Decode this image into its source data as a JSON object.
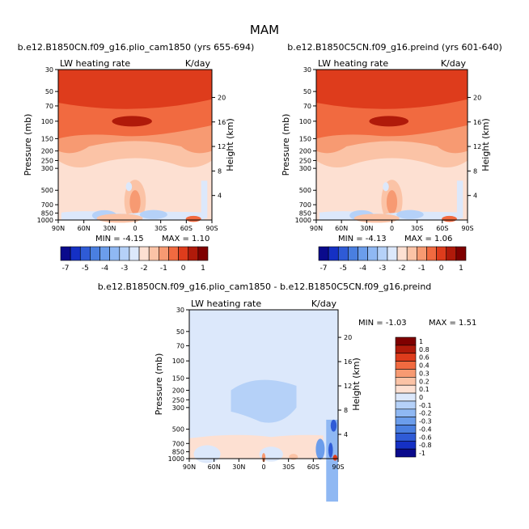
{
  "figure": {
    "title": "MAM",
    "lat_ticks": [
      "90N",
      "60N",
      "30N",
      "0",
      "30S",
      "60S",
      "90S"
    ],
    "pressure_ticks": [
      {
        "label": "30",
        "p": 30
      },
      {
        "label": "50",
        "p": 50
      },
      {
        "label": "70",
        "p": 70
      },
      {
        "label": "100",
        "p": 100
      },
      {
        "label": "150",
        "p": 150
      },
      {
        "label": "200",
        "p": 200
      },
      {
        "label": "250",
        "p": 250
      },
      {
        "label": "300",
        "p": 300
      },
      {
        "label": "500",
        "p": 500
      },
      {
        "label": "700",
        "p": 700
      },
      {
        "label": "850",
        "p": 850
      },
      {
        "label": "1000",
        "p": 1000
      }
    ],
    "height_ticks": [
      {
        "label": "4",
        "km": 4
      },
      {
        "label": "8",
        "km": 8
      },
      {
        "label": "12",
        "km": 12
      },
      {
        "label": "16",
        "km": 16
      },
      {
        "label": "20",
        "km": 20
      }
    ],
    "colors": {
      "accent_dark_red": "#7f0000",
      "neutral_light": "#fde0d2",
      "blue_dark": "#0a0a8c"
    }
  },
  "chart_data": [
    {
      "type": "heatmap",
      "title": "b.e12.B1850CN.f09_g16.plio_cam1850 (yrs 655-694)",
      "left_label": "LW heating rate",
      "right_label": "K/day",
      "xlabel": "",
      "ylabel": "Pressure (mb)",
      "y2label": "Height (km)",
      "ylim": [
        1000,
        30
      ],
      "y_scale": "log",
      "min_label": "MIN =   -4.15",
      "max_label": "MAX =    1.10",
      "min": -4.15,
      "max": 1.1,
      "colorbar": {
        "levels": [
          -7,
          -6,
          -5,
          -4.5,
          -4,
          -3.5,
          -3,
          -2.5,
          -2,
          -1.5,
          -1,
          -0.5,
          0,
          0.5,
          1
        ],
        "tick_labels": [
          "-7",
          "-5",
          "-4",
          "-3",
          "-2",
          "-1",
          "0",
          "1"
        ],
        "colors": [
          "#0a0a8c",
          "#1530c4",
          "#2f5bd6",
          "#4a7fe0",
          "#6b9deb",
          "#8fb8f3",
          "#b5d1f8",
          "#dce8fb",
          "#fde0d2",
          "#fbc3a6",
          "#f79a72",
          "#f16a40",
          "#de3c1c",
          "#b01a0a",
          "#7f0000"
        ]
      }
    },
    {
      "type": "heatmap",
      "title": "b.e12.B1850C5CN.f09_g16.preind (yrs 601-640)",
      "left_label": "LW heating rate",
      "right_label": "K/day",
      "xlabel": "",
      "ylabel": "Pressure (mb)",
      "y2label": "Height (km)",
      "ylim": [
        1000,
        30
      ],
      "y_scale": "log",
      "min_label": "MIN =   -4.13",
      "max_label": "MAX =    1.06",
      "min": -4.13,
      "max": 1.06,
      "colorbar": {
        "levels": [
          -7,
          -6,
          -5,
          -4.5,
          -4,
          -3.5,
          -3,
          -2.5,
          -2,
          -1.5,
          -1,
          -0.5,
          0,
          0.5,
          1
        ],
        "tick_labels": [
          "-7",
          "-5",
          "-4",
          "-3",
          "-2",
          "-1",
          "0",
          "1"
        ],
        "colors": [
          "#0a0a8c",
          "#1530c4",
          "#2f5bd6",
          "#4a7fe0",
          "#6b9deb",
          "#8fb8f3",
          "#b5d1f8",
          "#dce8fb",
          "#fde0d2",
          "#fbc3a6",
          "#f79a72",
          "#f16a40",
          "#de3c1c",
          "#b01a0a",
          "#7f0000"
        ]
      }
    },
    {
      "type": "heatmap",
      "title": "b.e12.B1850CN.f09_g16.plio_cam1850 - b.e12.B1850C5CN.f09_g16.preind",
      "left_label": "LW heating rate",
      "right_label": "K/day",
      "xlabel": "",
      "ylabel": "Pressure (mb)",
      "y2label": "Height (km)",
      "ylim": [
        1000,
        30
      ],
      "y_scale": "log",
      "min_label": "MIN =   -1.03",
      "max_label": "MAX =    1.51",
      "min": -1.03,
      "max": 1.51,
      "colorbar": {
        "levels": [
          -1,
          -0.8,
          -0.6,
          -0.4,
          -0.3,
          -0.2,
          -0.1,
          0,
          0.1,
          0.2,
          0.3,
          0.4,
          0.6,
          0.8,
          1
        ],
        "tick_labels": [
          "1",
          "0.8",
          "0.6",
          "0.4",
          "0.3",
          "0.2",
          "0.1",
          "0",
          "-0.1",
          "-0.2",
          "-0.3",
          "-0.4",
          "-0.6",
          "-0.8",
          "-1"
        ],
        "colors": [
          "#7f0000",
          "#b01a0a",
          "#de3c1c",
          "#f16a40",
          "#f79a72",
          "#fbc3a6",
          "#fde0d2",
          "#dce8fb",
          "#b5d1f8",
          "#8fb8f3",
          "#6b9deb",
          "#4a7fe0",
          "#2f5bd6",
          "#1530c4",
          "#0a0a8c"
        ]
      }
    }
  ]
}
